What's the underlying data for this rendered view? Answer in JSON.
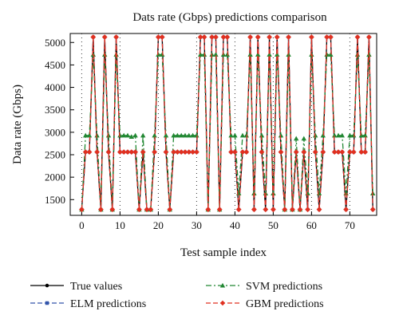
{
  "chart_data": {
    "type": "line",
    "title": "Dats rate (Gbps) predictions comparison",
    "xlabel": "Test sample index",
    "ylabel": "Data rate (Gbps)",
    "xlim": [
      -3,
      77
    ],
    "ylim": [
      1150,
      5200
    ],
    "xticks": [
      0,
      10,
      20,
      30,
      40,
      50,
      60,
      70
    ],
    "yticks": [
      1500,
      2000,
      2500,
      3000,
      3500,
      4000,
      4500,
      5000
    ],
    "grid": "dotted vertical at x ticks",
    "legend_position": "bottom",
    "x": [
      0,
      1,
      2,
      3,
      4,
      5,
      6,
      7,
      8,
      9,
      10,
      11,
      12,
      13,
      14,
      15,
      16,
      17,
      18,
      19,
      20,
      21,
      22,
      23,
      24,
      25,
      26,
      27,
      28,
      29,
      30,
      31,
      32,
      33,
      34,
      35,
      36,
      37,
      38,
      39,
      40,
      41,
      42,
      43,
      44,
      45,
      46,
      47,
      48,
      49,
      50,
      51,
      52,
      53,
      54,
      55,
      56,
      57,
      58,
      59,
      60,
      61,
      62,
      63,
      64,
      65,
      66,
      67,
      68,
      69,
      70,
      71,
      72,
      73,
      74,
      75,
      76
    ],
    "series": [
      {
        "name": "True values",
        "color": "#000000",
        "marker": "circle",
        "dash": "solid",
        "values": [
          1280,
          2560,
          2560,
          5120,
          2560,
          1280,
          5120,
          2560,
          1280,
          5120,
          2560,
          2560,
          2560,
          2560,
          2560,
          1280,
          2560,
          1280,
          1280,
          2560,
          5120,
          5120,
          2560,
          1280,
          2560,
          2560,
          2560,
          2560,
          2560,
          2560,
          2560,
          5120,
          5120,
          1280,
          5120,
          5120,
          1280,
          5120,
          5120,
          2560,
          2560,
          1280,
          2560,
          2560,
          5120,
          1280,
          5120,
          2560,
          1280,
          5120,
          1280,
          5120,
          2560,
          1280,
          5120,
          1280,
          2560,
          1280,
          2560,
          1280,
          5120,
          2560,
          1280,
          2560,
          5120,
          5120,
          2560,
          2560,
          2560,
          1280,
          2560,
          2560,
          5120,
          2560,
          2560,
          5120,
          1280
        ]
      },
      {
        "name": "ELM predictions",
        "color": "#3355aa",
        "marker": "square",
        "dash": "dashed",
        "values": [
          1280,
          2560,
          2560,
          5120,
          2560,
          1280,
          5120,
          2560,
          1280,
          5120,
          2560,
          2560,
          2560,
          2560,
          2560,
          1280,
          2560,
          1280,
          1280,
          2560,
          5120,
          5120,
          2560,
          1280,
          2560,
          2560,
          2560,
          2560,
          2560,
          2560,
          2560,
          5120,
          5120,
          1280,
          5120,
          5120,
          1280,
          5120,
          5120,
          2560,
          2560,
          1280,
          2560,
          2560,
          5120,
          1280,
          5120,
          2560,
          1280,
          5120,
          1280,
          5120,
          2560,
          1280,
          5120,
          1280,
          2560,
          1280,
          2560,
          1280,
          5120,
          2560,
          1280,
          2560,
          5120,
          5120,
          2560,
          2560,
          2560,
          1280,
          2560,
          2560,
          5120,
          2560,
          2560,
          5120,
          1280
        ]
      },
      {
        "name": "SVM predictions",
        "color": "#228833",
        "marker": "triangle",
        "dash": "dashdot",
        "values": [
          1280,
          2930,
          2930,
          4730,
          2930,
          1280,
          4730,
          2930,
          1280,
          4730,
          2930,
          2930,
          2930,
          2900,
          2930,
          1280,
          2930,
          1280,
          1280,
          2930,
          4730,
          4730,
          2930,
          1280,
          2930,
          2930,
          2930,
          2930,
          2930,
          2930,
          2930,
          4730,
          4730,
          1280,
          4730,
          4730,
          1280,
          4730,
          4730,
          2930,
          2930,
          1640,
          2930,
          2930,
          4730,
          1640,
          4730,
          2930,
          1640,
          4730,
          1640,
          4730,
          2930,
          1280,
          4730,
          1280,
          2860,
          1280,
          2860,
          1640,
          4730,
          2930,
          1640,
          2930,
          4730,
          4730,
          2930,
          2930,
          2930,
          1640,
          2930,
          2930,
          4730,
          2930,
          2930,
          4730,
          1640
        ]
      },
      {
        "name": "GBM predictions",
        "color": "#e03020",
        "marker": "diamond",
        "dash": "dashed",
        "values": [
          1280,
          2560,
          2560,
          5120,
          2560,
          1280,
          5120,
          2560,
          1280,
          5120,
          2560,
          2560,
          2560,
          2560,
          2560,
          1280,
          2560,
          1280,
          1280,
          2560,
          5120,
          5120,
          2560,
          1280,
          2560,
          2560,
          2560,
          2560,
          2560,
          2560,
          2560,
          5120,
          5120,
          1280,
          5120,
          5120,
          1280,
          5120,
          5120,
          2560,
          2560,
          1280,
          2560,
          2560,
          5120,
          1280,
          5120,
          2560,
          1280,
          5120,
          1280,
          5120,
          2560,
          1280,
          5120,
          1280,
          2560,
          1280,
          2560,
          1280,
          5120,
          2560,
          1280,
          2560,
          5120,
          5120,
          2560,
          2560,
          2560,
          1280,
          2560,
          2560,
          5120,
          2560,
          2560,
          5120,
          1280
        ]
      }
    ]
  }
}
